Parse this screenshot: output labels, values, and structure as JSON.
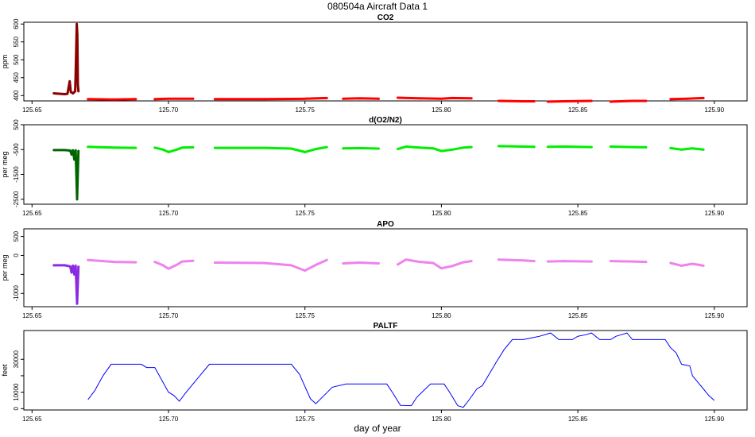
{
  "figure": {
    "title": "080504a    Aircraft Data 1",
    "xlabel": "day of year"
  },
  "chart_data": [
    {
      "type": "scatter",
      "title": "CO2",
      "ylabel": "ppm",
      "xlim": [
        125.647,
        125.912
      ],
      "ylim": [
        385,
        605
      ],
      "xticks": [
        125.65,
        125.7,
        125.75,
        125.8,
        125.85,
        125.9
      ],
      "xtick_labels": [
        "125.65",
        "125.70",
        "125.75",
        "125.80",
        "125.85",
        "125.90"
      ],
      "yticks": [
        400,
        450,
        500,
        550,
        600
      ],
      "ytick_labels": [
        "400",
        "450",
        "500",
        "550",
        "600"
      ],
      "series": [
        {
          "color": "#8b0000",
          "segments": [
            [
              [
                125.658,
                406
              ],
              [
                125.66,
                405
              ],
              [
                125.662,
                404
              ],
              [
                125.663,
                405
              ],
              [
                125.6638,
                440
              ],
              [
                125.6642,
                410
              ],
              [
                125.665,
                406
              ],
              [
                125.6658,
                412
              ],
              [
                125.666,
                460
              ],
              [
                125.6662,
                530
              ],
              [
                125.6664,
                600
              ],
              [
                125.6666,
                570
              ],
              [
                125.6668,
                430
              ],
              [
                125.667,
                412
              ]
            ]
          ]
        },
        {
          "color": "#ff0000",
          "segments": [
            [
              [
                125.6705,
                390
              ],
              [
                125.68,
                389
              ],
              [
                125.688,
                390
              ]
            ],
            [
              [
                125.695,
                390
              ],
              [
                125.7,
                391
              ],
              [
                125.709,
                391
              ]
            ],
            [
              [
                125.717,
                390
              ],
              [
                125.735,
                390
              ],
              [
                125.75,
                391
              ],
              [
                125.758,
                393
              ]
            ],
            [
              [
                125.764,
                391
              ],
              [
                125.77,
                392
              ],
              [
                125.777,
                391
              ]
            ],
            [
              [
                125.784,
                394
              ],
              [
                125.792,
                392
              ],
              [
                125.8,
                391
              ],
              [
                125.804,
                393
              ],
              [
                125.811,
                392
              ]
            ],
            [
              [
                125.821,
                385
              ],
              [
                125.83,
                384
              ],
              [
                125.834,
                384
              ]
            ],
            [
              [
                125.839,
                383
              ],
              [
                125.845,
                384
              ],
              [
                125.855,
                385
              ]
            ],
            [
              [
                125.862,
                383
              ],
              [
                125.87,
                385
              ],
              [
                125.875,
                385
              ]
            ],
            [
              [
                125.884,
                390
              ],
              [
                125.89,
                391
              ],
              [
                125.896,
                393
              ]
            ]
          ]
        }
      ]
    },
    {
      "type": "scatter",
      "title": "d(O2/N2)",
      "ylabel": "per meg",
      "xlim": [
        125.647,
        125.912
      ],
      "ylim": [
        -2700,
        500
      ],
      "xticks": [
        125.65,
        125.7,
        125.75,
        125.8,
        125.85,
        125.9
      ],
      "xtick_labels": [
        "125.65",
        "125.70",
        "125.75",
        "125.80",
        "125.85",
        "125.90"
      ],
      "yticks": [
        -2500,
        -1500,
        -500,
        500
      ],
      "ytick_labels": [
        "-2500",
        "-1500",
        "-500",
        "500"
      ],
      "series": [
        {
          "color": "#006400",
          "segments": [
            [
              [
                125.658,
                -520
              ],
              [
                125.662,
                -520
              ],
              [
                125.664,
                -540
              ],
              [
                125.6645,
                -700
              ],
              [
                125.665,
                -530
              ],
              [
                125.6655,
                -900
              ],
              [
                125.666,
                -530
              ],
              [
                125.6665,
                -2500
              ],
              [
                125.667,
                -560
              ]
            ]
          ]
        },
        {
          "color": "#00ee00",
          "segments": [
            [
              [
                125.6705,
                -390
              ],
              [
                125.68,
                -420
              ],
              [
                125.688,
                -430
              ]
            ],
            [
              [
                125.695,
                -420
              ],
              [
                125.698,
                -500
              ],
              [
                125.7,
                -600
              ],
              [
                125.703,
                -500
              ],
              [
                125.705,
                -420
              ],
              [
                125.709,
                -410
              ]
            ],
            [
              [
                125.717,
                -430
              ],
              [
                125.735,
                -430
              ],
              [
                125.745,
                -460
              ],
              [
                125.75,
                -600
              ],
              [
                125.754,
                -480
              ],
              [
                125.758,
                -400
              ]
            ],
            [
              [
                125.764,
                -450
              ],
              [
                125.77,
                -440
              ],
              [
                125.777,
                -460
              ]
            ],
            [
              [
                125.784,
                -480
              ],
              [
                125.787,
                -380
              ],
              [
                125.792,
                -420
              ],
              [
                125.797,
                -450
              ],
              [
                125.8,
                -560
              ],
              [
                125.804,
                -500
              ],
              [
                125.808,
                -420
              ],
              [
                125.811,
                -400
              ]
            ],
            [
              [
                125.821,
                -360
              ],
              [
                125.83,
                -380
              ],
              [
                125.834,
                -390
              ]
            ],
            [
              [
                125.839,
                -390
              ],
              [
                125.845,
                -380
              ],
              [
                125.855,
                -400
              ]
            ],
            [
              [
                125.862,
                -380
              ],
              [
                125.87,
                -400
              ],
              [
                125.875,
                -410
              ]
            ],
            [
              [
                125.884,
                -440
              ],
              [
                125.888,
                -500
              ],
              [
                125.892,
                -450
              ],
              [
                125.896,
                -500
              ]
            ]
          ]
        }
      ]
    },
    {
      "type": "scatter",
      "title": "APO",
      "ylabel": "per meg",
      "xlim": [
        125.647,
        125.912
      ],
      "ylim": [
        -1350,
        700
      ],
      "xticks": [
        125.65,
        125.7,
        125.75,
        125.8,
        125.85,
        125.9
      ],
      "xtick_labels": [
        "125.65",
        "125.70",
        "125.75",
        "125.80",
        "125.85",
        "125.90"
      ],
      "yticks": [
        -1000,
        -500,
        0,
        500
      ],
      "ytick_labels": [
        "-1000",
        "",
        "0",
        "500"
      ],
      "series": [
        {
          "color": "#8a2be2",
          "segments": [
            [
              [
                125.658,
                -260
              ],
              [
                125.662,
                -260
              ],
              [
                125.664,
                -290
              ],
              [
                125.6645,
                -450
              ],
              [
                125.665,
                -270
              ],
              [
                125.6655,
                -500
              ],
              [
                125.666,
                -270
              ],
              [
                125.6665,
                -1270
              ],
              [
                125.667,
                -300
              ]
            ]
          ]
        },
        {
          "color": "#ee82ee",
          "segments": [
            [
              [
                125.6705,
                -120
              ],
              [
                125.68,
                -170
              ],
              [
                125.688,
                -180
              ]
            ],
            [
              [
                125.695,
                -170
              ],
              [
                125.698,
                -260
              ],
              [
                125.7,
                -350
              ],
              [
                125.703,
                -250
              ],
              [
                125.705,
                -160
              ],
              [
                125.709,
                -140
              ]
            ],
            [
              [
                125.717,
                -190
              ],
              [
                125.735,
                -200
              ],
              [
                125.745,
                -260
              ],
              [
                125.75,
                -400
              ],
              [
                125.754,
                -250
              ],
              [
                125.758,
                -120
              ]
            ],
            [
              [
                125.764,
                -210
              ],
              [
                125.77,
                -190
              ],
              [
                125.777,
                -210
              ]
            ],
            [
              [
                125.784,
                -240
              ],
              [
                125.787,
                -110
              ],
              [
                125.792,
                -170
              ],
              [
                125.797,
                -200
              ],
              [
                125.8,
                -340
              ],
              [
                125.804,
                -280
              ],
              [
                125.808,
                -180
              ],
              [
                125.811,
                -150
              ]
            ],
            [
              [
                125.821,
                -110
              ],
              [
                125.83,
                -130
              ],
              [
                125.834,
                -150
              ]
            ],
            [
              [
                125.839,
                -160
              ],
              [
                125.845,
                -150
              ],
              [
                125.855,
                -160
              ]
            ],
            [
              [
                125.862,
                -150
              ],
              [
                125.87,
                -160
              ],
              [
                125.875,
                -170
              ]
            ],
            [
              [
                125.884,
                -200
              ],
              [
                125.888,
                -270
              ],
              [
                125.892,
                -220
              ],
              [
                125.896,
                -270
              ]
            ]
          ]
        }
      ]
    },
    {
      "type": "line",
      "title": "PALTF",
      "ylabel": "feet",
      "xlim": [
        125.647,
        125.912
      ],
      "ylim": [
        -800,
        47500
      ],
      "xticks": [
        125.65,
        125.7,
        125.75,
        125.8,
        125.85,
        125.9
      ],
      "xtick_labels": [
        "125.65",
        "125.70",
        "125.75",
        "125.80",
        "125.85",
        "125.90"
      ],
      "yticks": [
        0,
        10000,
        20000,
        30000
      ],
      "ytick_labels": [
        "0",
        "10000",
        "",
        "30000"
      ],
      "series": [
        {
          "color": "#0000ff",
          "points": [
            [
              125.6705,
              5500
            ],
            [
              125.673,
              11000
            ],
            [
              125.676,
              20000
            ],
            [
              125.679,
              27000
            ],
            [
              125.683,
              27000
            ],
            [
              125.69,
              27000
            ],
            [
              125.692,
              25000
            ],
            [
              125.695,
              25000
            ],
            [
              125.697,
              19000
            ],
            [
              125.7,
              10000
            ],
            [
              125.702,
              8000
            ],
            [
              125.704,
              4500
            ],
            [
              125.706,
              9000
            ],
            [
              125.71,
              17000
            ],
            [
              125.715,
              27000
            ],
            [
              125.72,
              27000
            ],
            [
              125.745,
              27000
            ],
            [
              125.748,
              21000
            ],
            [
              125.752,
              6000
            ],
            [
              125.754,
              3000
            ],
            [
              125.757,
              8000
            ],
            [
              125.76,
              13000
            ],
            [
              125.765,
              15000
            ],
            [
              125.78,
              15000
            ],
            [
              125.782,
              10000
            ],
            [
              125.785,
              2000
            ],
            [
              125.789,
              1800
            ],
            [
              125.791,
              7000
            ],
            [
              125.796,
              15000
            ],
            [
              125.801,
              15000
            ],
            [
              125.803,
              10000
            ],
            [
              125.806,
              1800
            ],
            [
              125.808,
              800
            ],
            [
              125.81,
              5000
            ],
            [
              125.813,
              12000
            ],
            [
              125.815,
              14000
            ],
            [
              125.82,
              28000
            ],
            [
              125.823,
              36000
            ],
            [
              125.826,
              42000
            ],
            [
              125.83,
              42000
            ],
            [
              125.833,
              43000
            ],
            [
              125.836,
              44000
            ],
            [
              125.84,
              46000
            ],
            [
              125.843,
              42000
            ],
            [
              125.848,
              42000
            ],
            [
              125.85,
              44000
            ],
            [
              125.853,
              45000
            ],
            [
              125.855,
              46000
            ],
            [
              125.858,
              42000
            ],
            [
              125.862,
              42000
            ],
            [
              125.864,
              44000
            ],
            [
              125.866,
              45000
            ],
            [
              125.868,
              46000
            ],
            [
              125.87,
              42000
            ],
            [
              125.882,
              42000
            ],
            [
              125.884,
              37000
            ],
            [
              125.886,
              34000
            ],
            [
              125.888,
              27000
            ],
            [
              125.891,
              26000
            ],
            [
              125.892,
              20000
            ],
            [
              125.896,
              12000
            ],
            [
              125.898,
              8000
            ],
            [
              125.9,
              5000
            ]
          ]
        }
      ]
    }
  ]
}
